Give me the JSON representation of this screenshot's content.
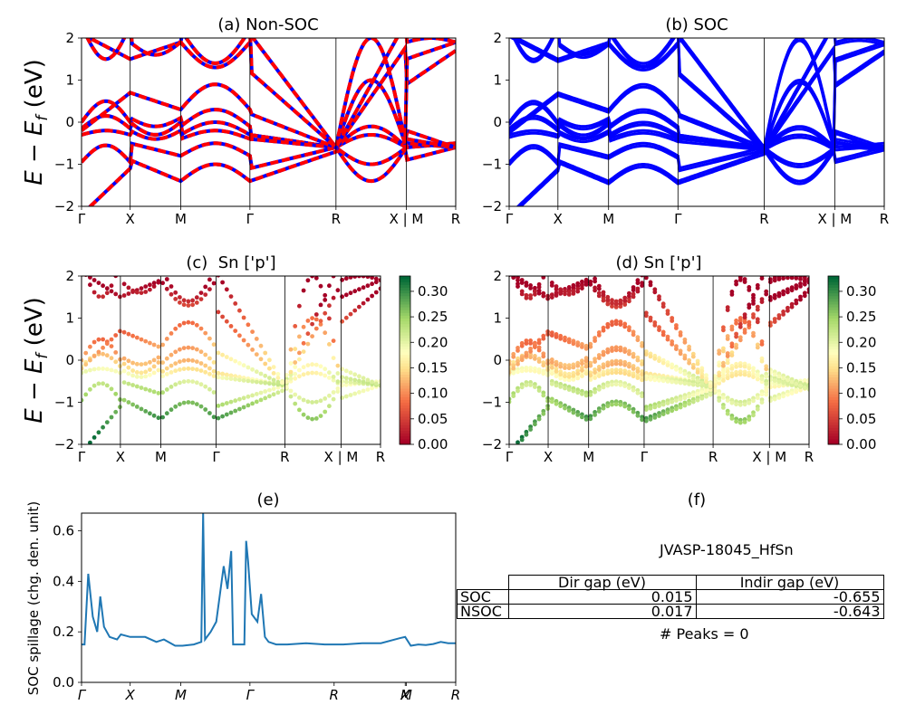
{
  "colors": {
    "nonsoc_a": "#ff0000",
    "nonsoc_b": "#0000ff",
    "soc": "#0000ff",
    "spillage": "#1f77b4",
    "cmap": "RdYlGn"
  },
  "kpath_labels": [
    "Γ",
    "X",
    "M",
    "Γ",
    "R",
    "X | M",
    "R"
  ],
  "kpath_labels_e": [
    "Γ",
    "X",
    "M",
    "Γ",
    "R",
    "X",
    "M",
    "R"
  ],
  "energy_ylabel": "E − E",
  "energy_ylabel_sub": "f",
  "energy_ylabel_unit": " (eV)",
  "chart_data": [
    {
      "id": "a",
      "type": "line",
      "title": "(a) Non-SOC",
      "xlabel": "",
      "ylabel": "E − E_f (eV)",
      "ylim": [
        -2,
        2
      ],
      "yticks": [
        "−2",
        "−1",
        "0",
        "1",
        "2"
      ],
      "xticks": [
        "Γ",
        "X",
        "M",
        "Γ",
        "R",
        "X | M",
        "R"
      ],
      "style": "dashed red/blue"
    },
    {
      "id": "b",
      "type": "line",
      "title": "(b) SOC",
      "xlabel": "",
      "ylabel": "",
      "ylim": [
        -2,
        2
      ],
      "yticks": [
        "−2",
        "−1",
        "0",
        "1",
        "2"
      ],
      "xticks": [
        "Γ",
        "X",
        "M",
        "Γ",
        "R",
        "X | M",
        "R"
      ],
      "style": "solid blue"
    },
    {
      "id": "c",
      "type": "scatter",
      "title": "(c)  Sn ['p']",
      "xlabel": "",
      "ylabel": "E − E_f (eV)",
      "ylim": [
        -2,
        2
      ],
      "yticks": [
        "−2",
        "−1",
        "0",
        "1",
        "2"
      ],
      "xticks": [
        "Γ",
        "X",
        "M",
        "Γ",
        "R",
        "X | M",
        "R"
      ],
      "colorbar": {
        "range": [
          0.0,
          0.33
        ],
        "ticks": [
          "0.00",
          "0.05",
          "0.10",
          "0.15",
          "0.20",
          "0.25",
          "0.30"
        ]
      }
    },
    {
      "id": "d",
      "type": "scatter",
      "title": "(d) Sn ['p']",
      "xlabel": "",
      "ylabel": "",
      "ylim": [
        -2,
        2
      ],
      "yticks": [
        "−2",
        "−1",
        "0",
        "1",
        "2"
      ],
      "xticks": [
        "Γ",
        "X",
        "M",
        "Γ",
        "R",
        "X | M",
        "R"
      ],
      "colorbar": {
        "range": [
          0.0,
          0.33
        ],
        "ticks": [
          "0.00",
          "0.05",
          "0.10",
          "0.15",
          "0.20",
          "0.25",
          "0.30"
        ]
      }
    },
    {
      "id": "e",
      "type": "line",
      "title": "(e)",
      "xlabel": "",
      "ylabel": "SOC spillage (chg. den. unit)",
      "ylim": [
        0.0,
        0.67
      ],
      "yticks": [
        "0.0",
        "0.2",
        "0.4",
        "0.6"
      ],
      "xticks": [
        "Γ",
        "X",
        "M",
        "Γ",
        "R",
        "X",
        "M",
        "R"
      ],
      "x": [
        0,
        0.008,
        0.018,
        0.03,
        0.042,
        0.05,
        0.06,
        0.075,
        0.095,
        0.105,
        0.13,
        0.15,
        0.17,
        0.2,
        0.22,
        0.25,
        0.27,
        0.3,
        0.32,
        0.325,
        0.33,
        0.345,
        0.36,
        0.38,
        0.39,
        0.4,
        0.405,
        0.41,
        0.425,
        0.435,
        0.44,
        0.445,
        0.455,
        0.47,
        0.48,
        0.49,
        0.5,
        0.52,
        0.55,
        0.6,
        0.65,
        0.7,
        0.75,
        0.8,
        0.85,
        0.865,
        0.88,
        0.9,
        0.92,
        0.94,
        0.96,
        0.98,
        1.0
      ],
      "values": [
        0.15,
        0.15,
        0.43,
        0.26,
        0.2,
        0.34,
        0.22,
        0.18,
        0.17,
        0.19,
        0.18,
        0.18,
        0.18,
        0.16,
        0.17,
        0.145,
        0.145,
        0.15,
        0.16,
        0.67,
        0.17,
        0.2,
        0.24,
        0.46,
        0.37,
        0.52,
        0.15,
        0.15,
        0.15,
        0.15,
        0.56,
        0.48,
        0.27,
        0.24,
        0.35,
        0.18,
        0.16,
        0.15,
        0.15,
        0.155,
        0.15,
        0.15,
        0.155,
        0.155,
        0.175,
        0.18,
        0.145,
        0.15,
        0.148,
        0.152,
        0.16,
        0.155,
        0.155
      ]
    }
  ],
  "table_f": {
    "title": "(f)",
    "material": "JVASP-18045_HfSn",
    "headers": [
      "Dir gap (eV)",
      "Indir gap (eV)"
    ],
    "rows": [
      {
        "label": "SOC",
        "dir": "0.015",
        "indir": "-0.655"
      },
      {
        "label": "NSOC",
        "dir": "0.017",
        "indir": "-0.643"
      }
    ],
    "peaks": "# Peaks = 0"
  }
}
